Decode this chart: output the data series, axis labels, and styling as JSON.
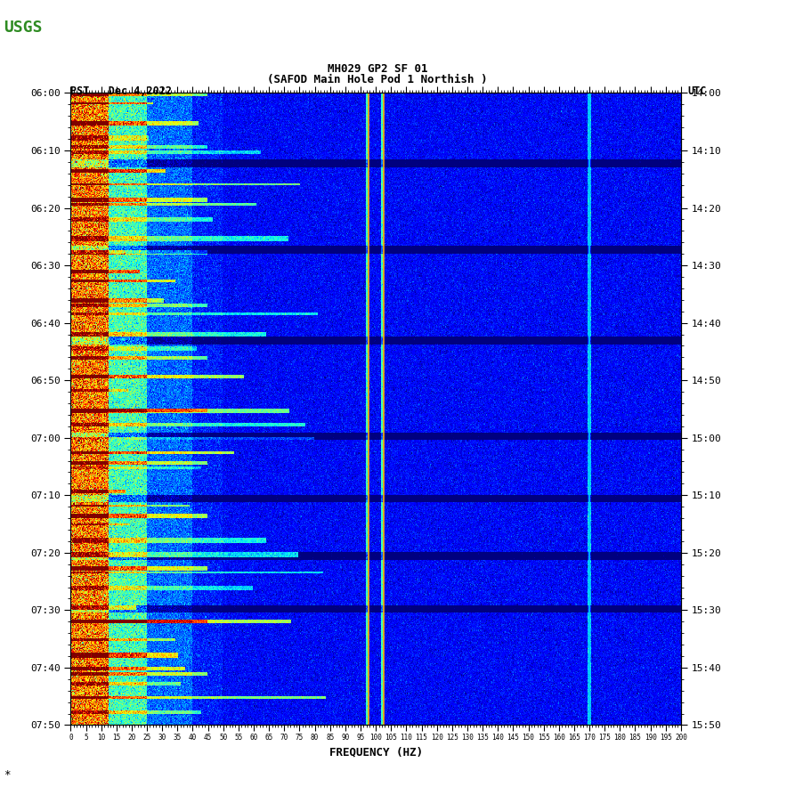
{
  "title_line1": "MH029 GP2 SF 01",
  "title_line2": "(SAFOD Main Hole Pod 1 Northish )",
  "date_label": "PST   Dec 4,2022",
  "utc_label": "UTC",
  "xlabel": "FREQUENCY (HZ)",
  "left_yticks": [
    "06:00",
    "06:10",
    "06:20",
    "06:30",
    "06:40",
    "06:50",
    "07:00",
    "07:10",
    "07:20",
    "07:30",
    "07:40",
    "07:50"
  ],
  "right_yticks": [
    "14:00",
    "14:10",
    "14:20",
    "14:30",
    "14:40",
    "14:50",
    "15:00",
    "15:10",
    "15:20",
    "15:30",
    "15:40",
    "15:50"
  ],
  "freq_min": 0,
  "freq_max": 200,
  "time_steps": 110,
  "background_color": "#ffffff",
  "orange_lines_freq": [
    97.5,
    102.5
  ],
  "cyan_lines_freq": [
    170.0
  ],
  "fig_width": 9.02,
  "fig_height": 8.93,
  "dpi": 100
}
